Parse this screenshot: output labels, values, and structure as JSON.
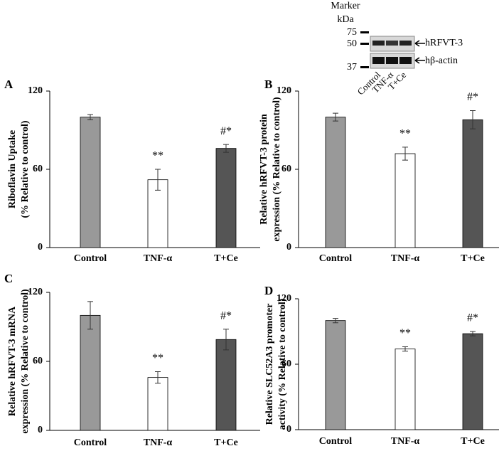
{
  "chart_data": [
    {
      "type": "bar",
      "panel": "A",
      "ylabel": [
        "Riboflavin Uptake",
        "(%  Relative to control)"
      ],
      "categories": [
        "Control",
        "TNF-α",
        "T+Ce"
      ],
      "values": [
        100,
        52,
        76
      ],
      "errors": [
        2,
        8,
        3
      ],
      "annotations": [
        null,
        "**",
        "#*"
      ],
      "colors": [
        "#999999",
        "#ffffff",
        "#555555"
      ],
      "ylim": [
        0,
        120
      ],
      "yticks": [
        0,
        60,
        120
      ]
    },
    {
      "type": "bar",
      "panel": "B",
      "ylabel": [
        "Relative hRFVT-3 protein",
        "expression (%  Relative to control)"
      ],
      "categories": [
        "Control",
        "TNF-α",
        "T+Ce"
      ],
      "values": [
        100,
        72,
        98
      ],
      "errors": [
        3,
        5,
        7
      ],
      "annotations": [
        null,
        "**",
        "#*"
      ],
      "colors": [
        "#999999",
        "#ffffff",
        "#555555"
      ],
      "ylim": [
        0,
        120
      ],
      "yticks": [
        0,
        60,
        120
      ]
    },
    {
      "type": "bar",
      "panel": "C",
      "ylabel": [
        "Relative hRFVT-3 mRNA",
        "expression (%  Relative to control)"
      ],
      "categories": [
        "Control",
        "TNF-α",
        "T+Ce"
      ],
      "values": [
        100,
        46,
        79
      ],
      "errors": [
        12,
        5,
        9
      ],
      "annotations": [
        null,
        "**",
        "#*"
      ],
      "colors": [
        "#999999",
        "#ffffff",
        "#555555"
      ],
      "ylim": [
        0,
        120
      ],
      "yticks": [
        0,
        60,
        120
      ]
    },
    {
      "type": "bar",
      "panel": "D",
      "ylabel": [
        "Relative SLC52A3 promoter",
        "activity (% Relative to control)"
      ],
      "categories": [
        "Control",
        "TNF-α",
        "T+Ce"
      ],
      "values": [
        100,
        74,
        88
      ],
      "errors": [
        2,
        2,
        2
      ],
      "annotations": [
        null,
        "**",
        "#*"
      ],
      "colors": [
        "#999999",
        "#ffffff",
        "#555555"
      ],
      "ylim": [
        0,
        120
      ],
      "yticks": [
        0,
        60,
        120
      ]
    }
  ],
  "blot": {
    "marker": "Marker",
    "unit": "kDa",
    "sizes": [
      "75",
      "50",
      "37"
    ],
    "bands": [
      "hRFVT-3",
      "hβ-actin"
    ],
    "lanes": [
      "Control",
      "TNF-α",
      "T+Ce"
    ]
  }
}
